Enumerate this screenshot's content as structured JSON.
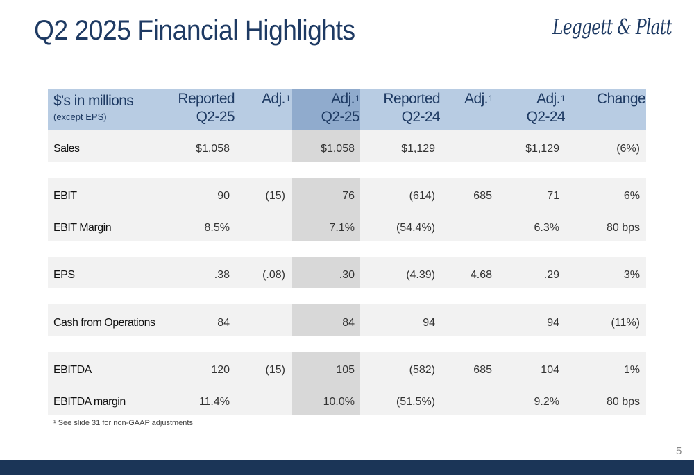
{
  "title": "Q2 2025 Financial Highlights",
  "logo_text": "Leggett & Platt",
  "header": {
    "label": "$'s in millions",
    "sublabel": "(except EPS)",
    "columns": [
      {
        "line1": "Reported",
        "line2": "Q2-25",
        "sup": ""
      },
      {
        "line1": "Adj.",
        "line2": "",
        "sup": "1"
      },
      {
        "line1": "Adj.",
        "line2": "Q2-25",
        "sup": "1"
      },
      {
        "line1": "Reported",
        "line2": "Q2-24",
        "sup": ""
      },
      {
        "line1": "Adj.",
        "line2": "",
        "sup": "1"
      },
      {
        "line1": "Adj.",
        "line2": "Q2-24",
        "sup": "1"
      },
      {
        "line1": "Change",
        "line2": "",
        "sup": ""
      }
    ]
  },
  "rows": [
    {
      "label": "Sales",
      "values": [
        "$1,058",
        "",
        "$1,058",
        "$1,129",
        "",
        "$1,129",
        "(6%)"
      ]
    },
    {
      "label": "EBIT",
      "values": [
        "90",
        "(15)",
        "76",
        "(614)",
        "685",
        "71",
        "6%"
      ]
    },
    {
      "label": "EBIT Margin",
      "values": [
        "8.5%",
        "",
        "7.1%",
        "(54.4%)",
        "",
        "6.3%",
        "80 bps"
      ]
    },
    {
      "label": "EPS",
      "values": [
        ".38",
        "(.08)",
        ".30",
        "(4.39)",
        "4.68",
        ".29",
        "3%"
      ]
    },
    {
      "label": "Cash from Operations",
      "values": [
        "84",
        "",
        "84",
        "94",
        "",
        "94",
        "(11%)"
      ]
    },
    {
      "label": "EBITDA",
      "values": [
        "120",
        "(15)",
        "105",
        "(582)",
        "685",
        "104",
        "1%"
      ]
    },
    {
      "label": "EBITDA margin",
      "values": [
        "11.4%",
        "",
        "10.0%",
        "(51.5%)",
        "",
        "9.2%",
        "80 bps"
      ]
    }
  ],
  "footnote": "¹ See slide 31 for non-GAAP adjustments",
  "page_number": "5",
  "colors": {
    "title": "#1e3a63",
    "header_bg": "#b8cce3",
    "header_highlight": "#90abcd",
    "band_bg": "#f2f2f2",
    "column_highlight": "#d8d8d8",
    "footer_bar": "#1b3557"
  }
}
